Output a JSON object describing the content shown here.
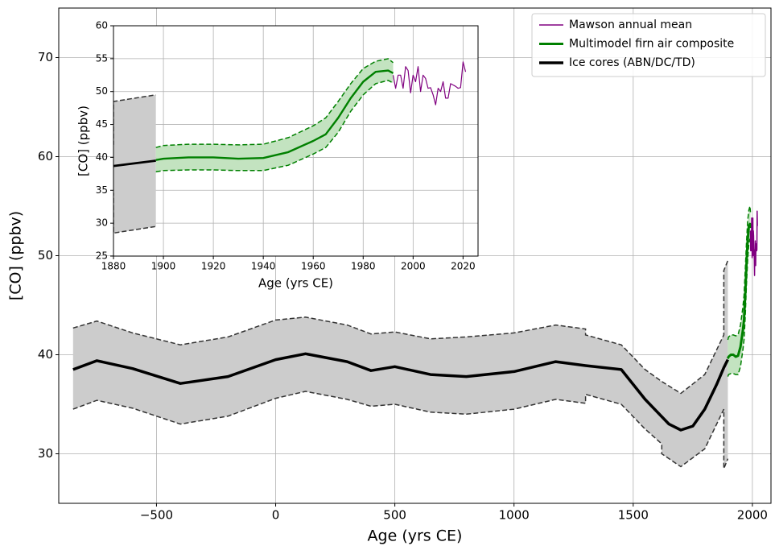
{
  "chart_data": [
    {
      "type": "line",
      "xlabel": "Age (yrs CE)",
      "ylabel": "[CO] (ppbv)",
      "xlim": [
        -910,
        2078
      ],
      "ylim": [
        25,
        75
      ],
      "xticks": [
        {
          "value": -500,
          "label": "−500"
        },
        0,
        500,
        1000,
        1500,
        2000
      ],
      "yticks": [
        30,
        40,
        50,
        60,
        70
      ],
      "grid": true,
      "legend": "upper right",
      "series": [
        {
          "name": "Mawson annual mean",
          "color": "#800080",
          "linewidth": 1.5,
          "x": [
            1992,
            1993,
            1994,
            1995,
            1996,
            1997,
            1998,
            1999,
            2000,
            2001,
            2002,
            2003,
            2004,
            2005,
            2006,
            2007,
            2008,
            2009,
            2010,
            2011,
            2012,
            2013,
            2014,
            2015,
            2016,
            2017,
            2018,
            2019,
            2020,
            2021
          ],
          "values": [
            52.5,
            50.5,
            52.5,
            52.5,
            50.5,
            53.8,
            53.2,
            49.8,
            52.5,
            51.5,
            53.8,
            50.0,
            52.5,
            52.0,
            50.5,
            50.6,
            49.5,
            48.0,
            50.5,
            50.0,
            51.5,
            49.0,
            49.0,
            51.2,
            51.0,
            50.8,
            50.5,
            50.6,
            54.5,
            53.0
          ]
        },
        {
          "name": "Multimodel firn air composite",
          "color": "#008000",
          "linewidth": 3,
          "band_color": "#c3e3c0",
          "x": [
            1897,
            1900,
            1910,
            1920,
            1930,
            1940,
            1950,
            1960,
            1965,
            1970,
            1975,
            1980,
            1985,
            1990,
            1992
          ],
          "values": [
            39.6,
            39.8,
            40.0,
            40.0,
            39.8,
            39.9,
            40.8,
            42.5,
            43.5,
            46.0,
            49.0,
            51.5,
            53.0,
            53.2,
            52.8
          ],
          "band": {
            "x": [
              1897,
              1900,
              1910,
              1920,
              1930,
              1940,
              1950,
              1960,
              1965,
              1970,
              1975,
              1980,
              1985,
              1990,
              1992
            ],
            "upper": [
              41.5,
              41.8,
              42.0,
              42.0,
              41.9,
              42.0,
              43.0,
              44.8,
              46.0,
              48.5,
              51.2,
              53.5,
              54.6,
              55.0,
              54.4
            ],
            "lower": [
              37.8,
              38.0,
              38.1,
              38.1,
              38.0,
              38.0,
              38.8,
              40.5,
              41.5,
              43.8,
              47.0,
              49.5,
              51.2,
              51.7,
              51.3
            ]
          }
        },
        {
          "name": "Ice cores (ABN/DC/TD)",
          "color": "#000000",
          "linewidth": 3.5,
          "band_color": "#cccccc",
          "x": [
            -850,
            -750,
            -600,
            -400,
            -200,
            0,
            125,
            300,
            400,
            500,
            650,
            800,
            1000,
            1175,
            1300,
            1450,
            1550,
            1650,
            1700,
            1750,
            1800,
            1850,
            1880,
            1897
          ],
          "values": [
            38.5,
            39.4,
            38.6,
            37.1,
            37.8,
            39.5,
            40.1,
            39.3,
            38.4,
            38.8,
            38.0,
            37.8,
            38.3,
            39.3,
            38.9,
            38.5,
            35.5,
            33.0,
            32.4,
            32.8,
            34.5,
            37.0,
            38.7,
            39.5
          ],
          "band": {
            "x": [
              -850,
              -750,
              -600,
              -400,
              -200,
              0,
              125,
              300,
              400,
              500,
              650,
              800,
              1000,
              1175,
              1300,
              1300,
              1450,
              1550,
              1620,
              1620,
              1700,
              1800,
              1880,
              1880,
              1897
            ],
            "upper": [
              42.7,
              43.4,
              42.2,
              41.0,
              41.8,
              43.5,
              43.8,
              43.0,
              42.1,
              42.3,
              41.6,
              41.8,
              42.2,
              43.0,
              42.6,
              42.0,
              41.0,
              38.5,
              37.3,
              37.3,
              36.1,
              38.0,
              42.0,
              48.5,
              49.5
            ],
            "lower": [
              34.5,
              35.4,
              34.6,
              33.0,
              33.8,
              35.6,
              36.3,
              35.5,
              34.8,
              35.0,
              34.2,
              34.0,
              34.5,
              35.5,
              35.1,
              36.0,
              35.0,
              32.5,
              31.0,
              30.0,
              28.7,
              30.5,
              34.5,
              28.5,
              29.5
            ]
          }
        }
      ]
    },
    {
      "type": "line",
      "xlabel": "Age (yrs CE)",
      "ylabel": "[CO] (ppbv)",
      "xlim": [
        1880,
        2026
      ],
      "ylim": [
        25,
        60
      ],
      "xticks": [
        1880,
        1900,
        1920,
        1940,
        1960,
        1980,
        2000,
        2020
      ],
      "yticks": [
        25,
        30,
        35,
        40,
        45,
        50,
        55,
        60
      ],
      "grid": true
    }
  ]
}
